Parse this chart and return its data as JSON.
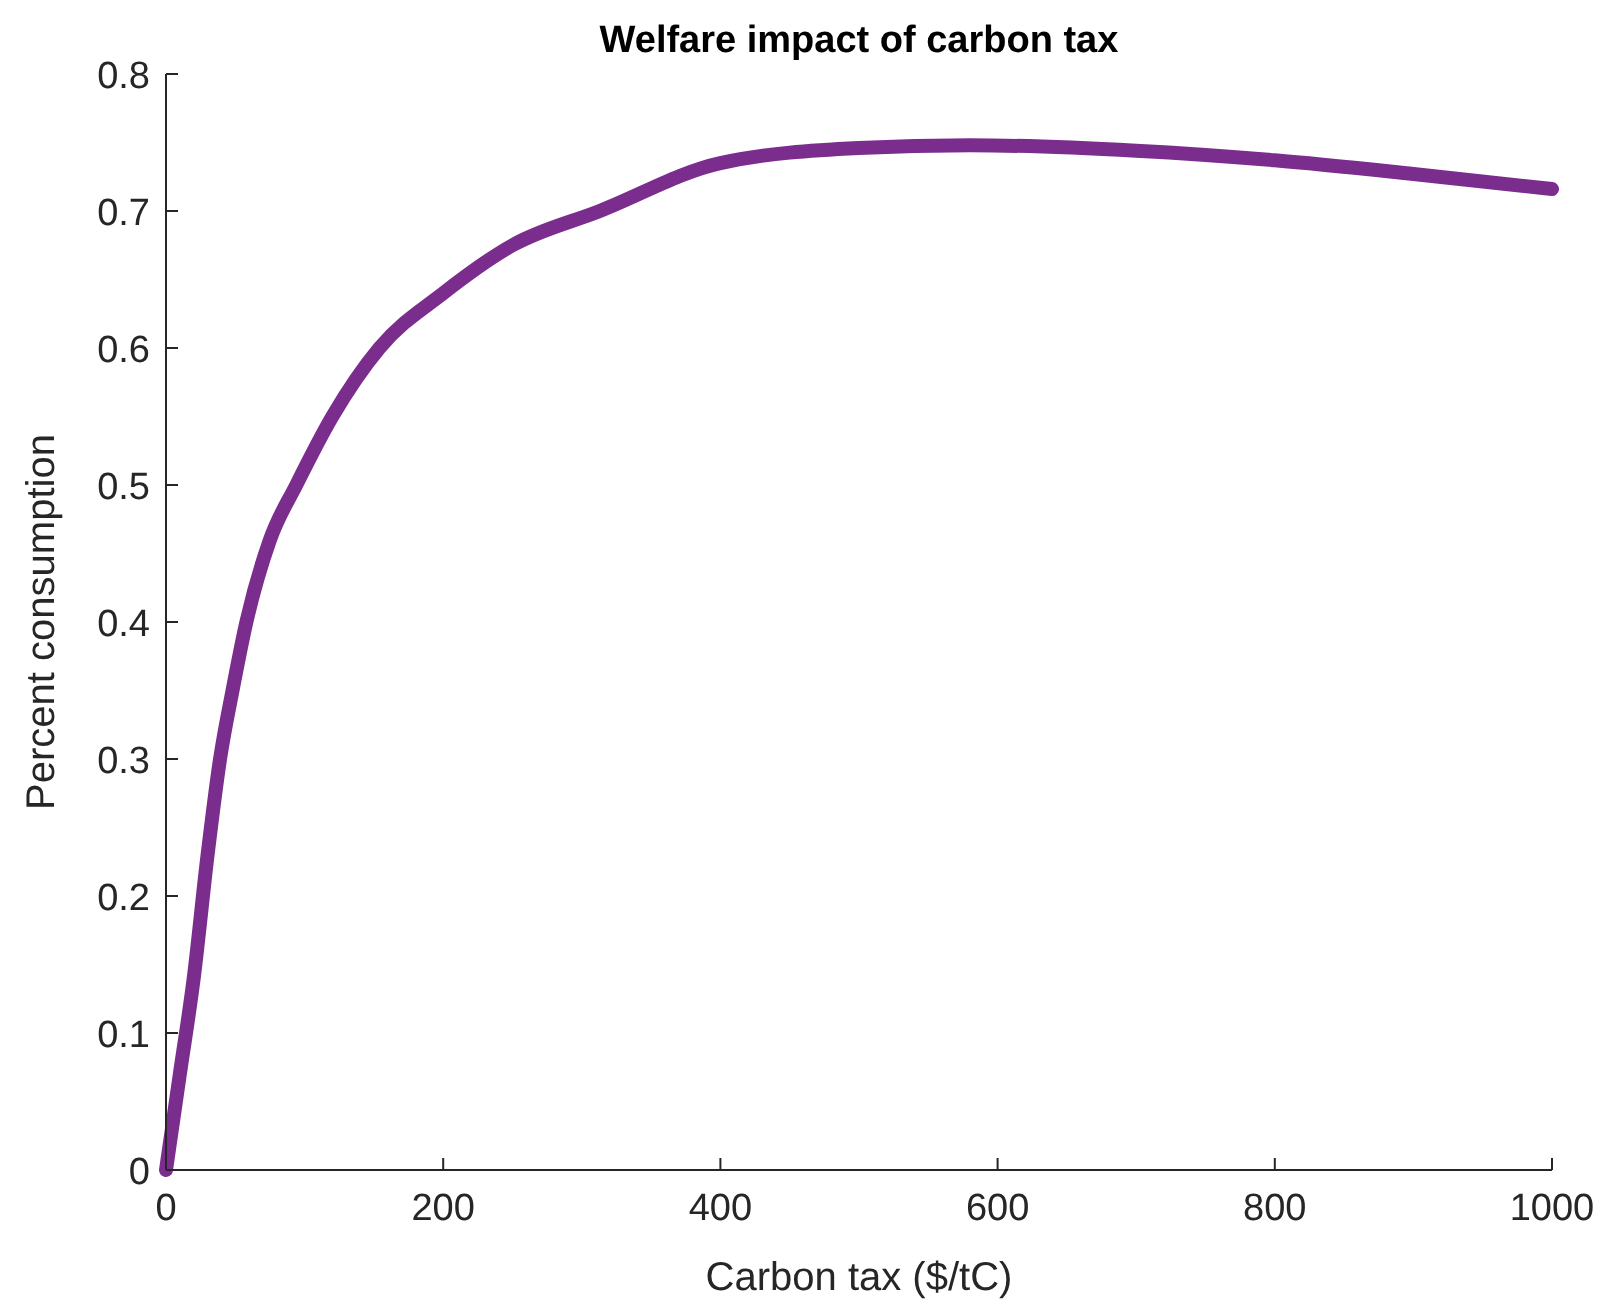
{
  "chart_data": {
    "type": "line",
    "title": "Welfare impact of carbon tax",
    "xlabel": "Carbon tax ($/tC)",
    "ylabel": "Percent consumption",
    "x": [
      0,
      5,
      10,
      20,
      30,
      39,
      48,
      58,
      75,
      94,
      120,
      154,
      200,
      250,
      313,
      400,
      500,
      580,
      700,
      800,
      900,
      1000
    ],
    "series": [
      {
        "color": "#7b2d8e",
        "values": [
          0,
          0.035,
          0.07,
          0.14,
          0.23,
          0.3,
          0.35,
          0.4,
          0.46,
          0.5,
          0.55,
          0.6,
          0.64,
          0.675,
          0.7,
          0.735,
          0.746,
          0.748,
          0.744,
          0.737,
          0.727,
          0.716
        ]
      }
    ],
    "xlim": [
      0,
      1000
    ],
    "ylim": [
      0,
      0.8
    ],
    "xticks": [
      0,
      200,
      400,
      600,
      800,
      1000
    ],
    "yticks": [
      0,
      0.1,
      0.2,
      0.3,
      0.4,
      0.5,
      0.6,
      0.7,
      0.8
    ],
    "grid": false,
    "line_style": "solid"
  }
}
